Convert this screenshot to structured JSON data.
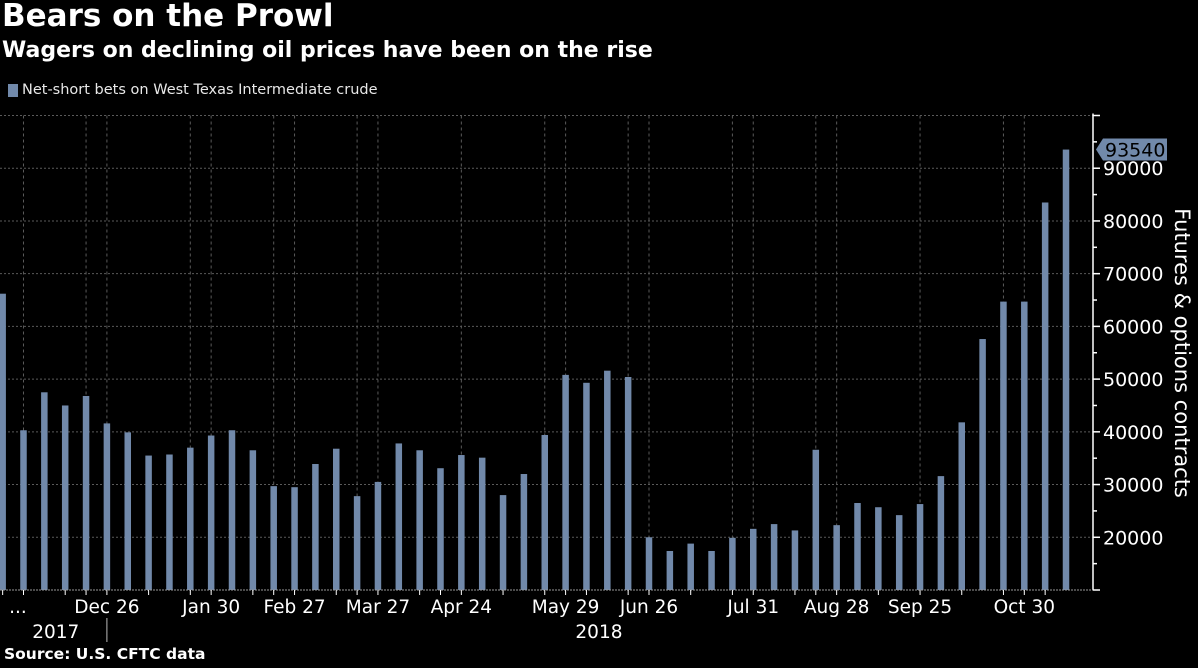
{
  "header": {
    "title": "Bears on the Prowl",
    "subtitle": "Wagers on declining oil prices have been on the rise"
  },
  "footer": {
    "source": "Source: U.S. CFTC data"
  },
  "colors": {
    "background": "#000000",
    "bar": "#7189AA",
    "grid": "#5a5a5a",
    "axis": "#ffffff",
    "text": "#ffffff"
  },
  "chart_data": {
    "type": "bar",
    "title": "Bears on the Prowl",
    "subtitle": "Wagers on declining oil prices have been on the rise",
    "xlabel": "",
    "ylabel": "Futures & options contracts",
    "ylim": [
      10000,
      100000
    ],
    "yticks": [
      20000,
      30000,
      40000,
      50000,
      60000,
      70000,
      80000,
      90000
    ],
    "grid": true,
    "legend": {
      "position": "top-left",
      "entries": [
        "Net-short bets on West Texas Intermediate crude"
      ]
    },
    "series": [
      {
        "name": "Net-short bets on West Texas Intermediate crude",
        "values": [
          66200,
          40300,
          47500,
          45000,
          46800,
          41600,
          39900,
          35500,
          35700,
          37000,
          39300,
          40300,
          36500,
          29700,
          29500,
          33900,
          36800,
          27800,
          30500,
          37800,
          36500,
          33100,
          35600,
          35100,
          28000,
          32000,
          39400,
          50800,
          49300,
          51600,
          50400,
          20000,
          17400,
          18800,
          17400,
          19900,
          21600,
          22500,
          21300,
          36600,
          22300,
          26500,
          25700,
          24200,
          26300,
          31600,
          41800,
          57600,
          64700,
          64700,
          83500,
          93540
        ]
      }
    ],
    "x_tick_labels": [
      {
        "index": 0,
        "label": "..."
      },
      {
        "index": 5,
        "label": "Dec 26"
      },
      {
        "index": 10,
        "label": "Jan 30"
      },
      {
        "index": 14,
        "label": "Feb 27"
      },
      {
        "index": 18,
        "label": "Mar 27"
      },
      {
        "index": 22,
        "label": "Apr 24"
      },
      {
        "index": 27,
        "label": "May 29"
      },
      {
        "index": 31,
        "label": "Jun 26"
      },
      {
        "index": 36,
        "label": "Jul 31"
      },
      {
        "index": 40,
        "label": "Aug 28"
      },
      {
        "index": 44,
        "label": "Sep 25"
      },
      {
        "index": 49,
        "label": "Oct 30"
      }
    ],
    "year_labels": [
      {
        "label": "2017",
        "center_index": 2.5
      },
      {
        "label": "2018",
        "center_index": 28.6
      }
    ],
    "year_divider_index": 5,
    "vertical_grid_indices": [
      1,
      4,
      5,
      9,
      10,
      13,
      14,
      17,
      18,
      22,
      26,
      27,
      30,
      31,
      35,
      36,
      39,
      40,
      44,
      48,
      49
    ],
    "last_value_label": "93540"
  }
}
